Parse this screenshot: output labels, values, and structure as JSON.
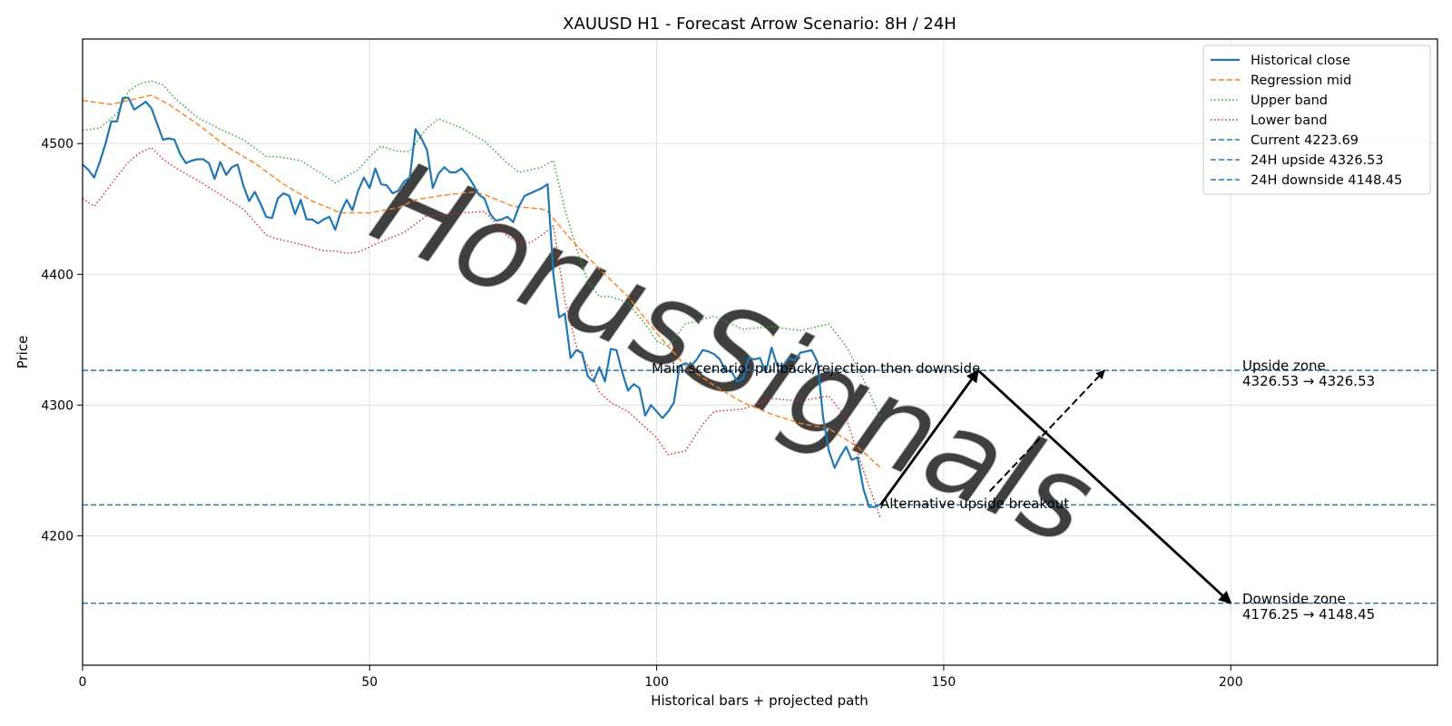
{
  "chart_data": {
    "type": "line",
    "title": "XAUUSD H1 - Forecast Arrow Scenario: 8H / 24H",
    "xlabel": "Historical bars + projected path",
    "ylabel": "Price",
    "xlim": [
      0,
      236
    ],
    "ylim": [
      4101,
      4580
    ],
    "xticks": [
      0,
      50,
      100,
      150,
      200
    ],
    "yticks": [
      4200,
      4300,
      4400,
      4500
    ],
    "grid": true,
    "legend_position": "top-right",
    "watermark": "HorusSignals",
    "colors": {
      "close": "#1f77b4",
      "mid": "#ff7f0e",
      "upper": "#2ca02c",
      "lower": "#d62728",
      "hline": "#1f77b4",
      "arrow": "#000000"
    },
    "series": [
      {
        "name": "Historical close",
        "style": "solid",
        "x": [
          0,
          1,
          2,
          3,
          4,
          5,
          6,
          7,
          8,
          9,
          10,
          11,
          12,
          13,
          14,
          15,
          16,
          17,
          18,
          19,
          20,
          21,
          22,
          23,
          24,
          25,
          26,
          27,
          28,
          29,
          30,
          31,
          32,
          33,
          34,
          35,
          36,
          37,
          38,
          39,
          40,
          41,
          42,
          43,
          44,
          45,
          46,
          47,
          48,
          49,
          50,
          51,
          52,
          53,
          54,
          55,
          56,
          57,
          58,
          59,
          60,
          61,
          62,
          63,
          64,
          65,
          66,
          67,
          68,
          69,
          70,
          71,
          72,
          73,
          74,
          75,
          76,
          77,
          78,
          79,
          80,
          81,
          82,
          83,
          84,
          85,
          86,
          87,
          88,
          89,
          90,
          91,
          92,
          93,
          94,
          95,
          96,
          97,
          98,
          99,
          100,
          101,
          102,
          103,
          104,
          105,
          106,
          107,
          108,
          109,
          110,
          111,
          112,
          113,
          114,
          115,
          116,
          117,
          118,
          119,
          120,
          121,
          122,
          123,
          124,
          125,
          126,
          127,
          128,
          129,
          130,
          131,
          132,
          133,
          134,
          135,
          136,
          137,
          138,
          139
        ],
        "values": [
          4484,
          4480,
          4474,
          4486,
          4500,
          4517,
          4517,
          4535,
          4535,
          4526,
          4529,
          4532,
          4527,
          4515,
          4503,
          4504,
          4503,
          4492,
          4485,
          4487,
          4488,
          4488,
          4485,
          4473,
          4486,
          4476,
          4482,
          4484,
          4468,
          4456,
          4463,
          4454,
          4444,
          4443,
          4458,
          4462,
          4460,
          4446,
          4457,
          4442,
          4442,
          4439,
          4442,
          4444,
          4434,
          4448,
          4457,
          4449,
          4464,
          4474,
          4466,
          4481,
          4469,
          4468,
          4462,
          4464,
          4471,
          4474,
          4511,
          4504,
          4495,
          4466,
          4477,
          4482,
          4478,
          4478,
          4481,
          4476,
          4469,
          4461,
          4458,
          4446,
          4441,
          4442,
          4444,
          4440,
          4452,
          4460,
          4462,
          4464,
          4466,
          4469,
          4400,
          4367,
          4370,
          4336,
          4342,
          4340,
          4322,
          4318,
          4329,
          4318,
          4343,
          4342,
          4325,
          4311,
          4316,
          4313,
          4292,
          4300,
          4295,
          4290,
          4295,
          4302,
          4330,
          4332,
          4330,
          4335,
          4342,
          4341,
          4339,
          4335,
          4326,
          4326,
          4318,
          4320,
          4336,
          4335,
          4336,
          4325,
          4344,
          4330,
          4330,
          4336,
          4334,
          4340,
          4341,
          4342,
          4333,
          4290,
          4265,
          4252,
          4261,
          4268,
          4258,
          4260,
          4236,
          4222,
          4222,
          4224
        ]
      },
      {
        "name": "Regression mid",
        "style": "dashed",
        "x": [
          0,
          5,
          10,
          12,
          15,
          20,
          25,
          30,
          35,
          40,
          45,
          50,
          55,
          58,
          62,
          68,
          70,
          75,
          80,
          81,
          85,
          90,
          95,
          100,
          105,
          110,
          115,
          120,
          125,
          130,
          135,
          139
        ],
        "values": [
          4533,
          4530,
          4535,
          4537,
          4530,
          4515,
          4498,
          4485,
          4469,
          4456,
          4447,
          4447,
          4451,
          4457,
          4460,
          4463,
          4461,
          4452,
          4450,
          4448,
          4427,
          4404,
          4383,
          4355,
          4330,
          4315,
          4302,
          4293,
          4286,
          4282,
          4268,
          4252
        ]
      },
      {
        "name": "Upper band",
        "style": "dotted",
        "x": [
          0,
          3,
          6,
          8,
          10,
          12,
          14,
          16,
          20,
          24,
          28,
          32,
          34,
          38,
          42,
          44,
          48,
          50,
          52,
          55,
          57,
          60,
          62,
          66,
          70,
          74,
          76,
          78,
          80,
          82,
          84,
          86,
          88,
          90,
          92,
          95,
          98,
          100,
          102,
          105,
          110,
          115,
          120,
          125,
          130,
          133,
          136,
          139
        ],
        "values": [
          4510,
          4512,
          4523,
          4540,
          4546,
          4548,
          4545,
          4535,
          4520,
          4511,
          4503,
          4490,
          4490,
          4487,
          4476,
          4470,
          4480,
          4490,
          4498,
          4494,
          4494,
          4512,
          4519,
          4512,
          4502,
          4485,
          4478,
          4480,
          4482,
          4487,
          4450,
          4420,
          4395,
          4383,
          4383,
          4378,
          4362,
          4349,
          4345,
          4362,
          4368,
          4358,
          4360,
          4357,
          4362,
          4345,
          4320,
          4290
        ]
      },
      {
        "name": "Lower band",
        "style": "dotted",
        "x": [
          0,
          2,
          4,
          6,
          8,
          10,
          12,
          14,
          16,
          20,
          24,
          28,
          32,
          34,
          38,
          42,
          44,
          46,
          48,
          52,
          56,
          60,
          62,
          66,
          70,
          74,
          76,
          78,
          80,
          82,
          84,
          86,
          88,
          90,
          92,
          95,
          98,
          100,
          102,
          105,
          108,
          110,
          115,
          120,
          125,
          130,
          133,
          136,
          139
        ],
        "values": [
          4458,
          4452,
          4463,
          4475,
          4486,
          4493,
          4497,
          4488,
          4482,
          4472,
          4461,
          4450,
          4430,
          4427,
          4423,
          4418,
          4418,
          4416,
          4417,
          4425,
          4432,
          4445,
          4445,
          4447,
          4448,
          4429,
          4425,
          4424,
          4430,
          4437,
          4380,
          4345,
          4330,
          4310,
          4302,
          4295,
          4283,
          4275,
          4262,
          4265,
          4285,
          4295,
          4297,
          4305,
          4303,
          4307,
          4290,
          4250,
          4213
        ]
      }
    ],
    "reference_lines": [
      {
        "name": "Current 4223.69",
        "value": 4223.69
      },
      {
        "name": "24H upside 4326.53",
        "value": 4326.53
      },
      {
        "name": "24H downside 4148.45",
        "value": 4148.45
      }
    ],
    "forecast_arrows": [
      {
        "from": [
          139,
          4223.69
        ],
        "to": [
          156,
          4326.53
        ],
        "style": "solid"
      },
      {
        "from": [
          156,
          4326.53
        ],
        "to": [
          200,
          4148.45
        ],
        "style": "solid"
      },
      {
        "from": [
          158,
          4234
        ],
        "to": [
          178,
          4326.53
        ],
        "style": "dashed"
      }
    ],
    "annotations": {
      "main_scenario": "Main scenario: pullback/rejection then downside",
      "alternative": "Alternative upside breakout",
      "upside_zone_title": "Upside zone",
      "upside_zone_range": "4326.53 → 4326.53",
      "downside_zone_title": "Downside zone",
      "downside_zone_range": "4176.25 → 4148.45"
    }
  }
}
